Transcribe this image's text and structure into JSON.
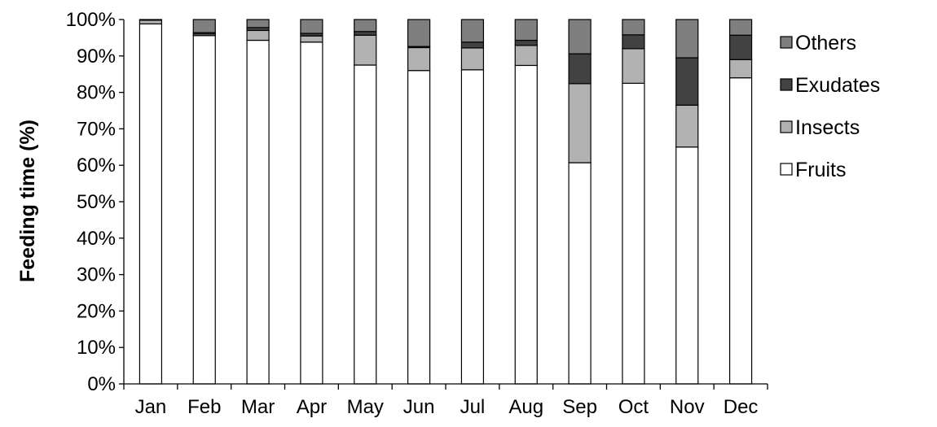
{
  "chart_data": {
    "type": "bar",
    "stacked": true,
    "categories": [
      "Jan",
      "Feb",
      "Mar",
      "Apr",
      "May",
      "Jun",
      "Jul",
      "Aug",
      "Sep",
      "Oct",
      "Nov",
      "Dec"
    ],
    "series": [
      {
        "name": "Fruits",
        "color": "#ffffff",
        "values": [
          98.8,
          95.6,
          94.3,
          93.8,
          87.5,
          86.0,
          86.2,
          87.4,
          60.7,
          82.5,
          65.0,
          84.0
        ]
      },
      {
        "name": "Insects",
        "color": "#b2b2b2",
        "values": [
          1.0,
          0.4,
          2.7,
          1.7,
          8.2,
          6.3,
          6.0,
          5.5,
          21.7,
          9.5,
          11.5,
          5.0
        ]
      },
      {
        "name": "Exudates",
        "color": "#424242",
        "values": [
          0.0,
          0.4,
          0.8,
          0.7,
          1.0,
          0.3,
          1.6,
          1.4,
          8.2,
          3.8,
          13.0,
          6.7
        ]
      },
      {
        "name": "Others",
        "color": "#7f7f7f",
        "values": [
          0.2,
          3.6,
          2.2,
          3.8,
          3.3,
          7.4,
          6.2,
          5.7,
          9.4,
          4.2,
          10.5,
          4.3
        ]
      }
    ],
    "ylabel": "Feeding time (%)",
    "xlabel": "",
    "ylim": [
      0,
      100
    ],
    "ytick_step": 10,
    "ytick_labels": [
      "0%",
      "10%",
      "20%",
      "30%",
      "40%",
      "50%",
      "60%",
      "70%",
      "80%",
      "90%",
      "100%"
    ],
    "grid": false,
    "legend_position": "right",
    "legend_order": [
      "Others",
      "Exudates",
      "Insects",
      "Fruits"
    ]
  }
}
